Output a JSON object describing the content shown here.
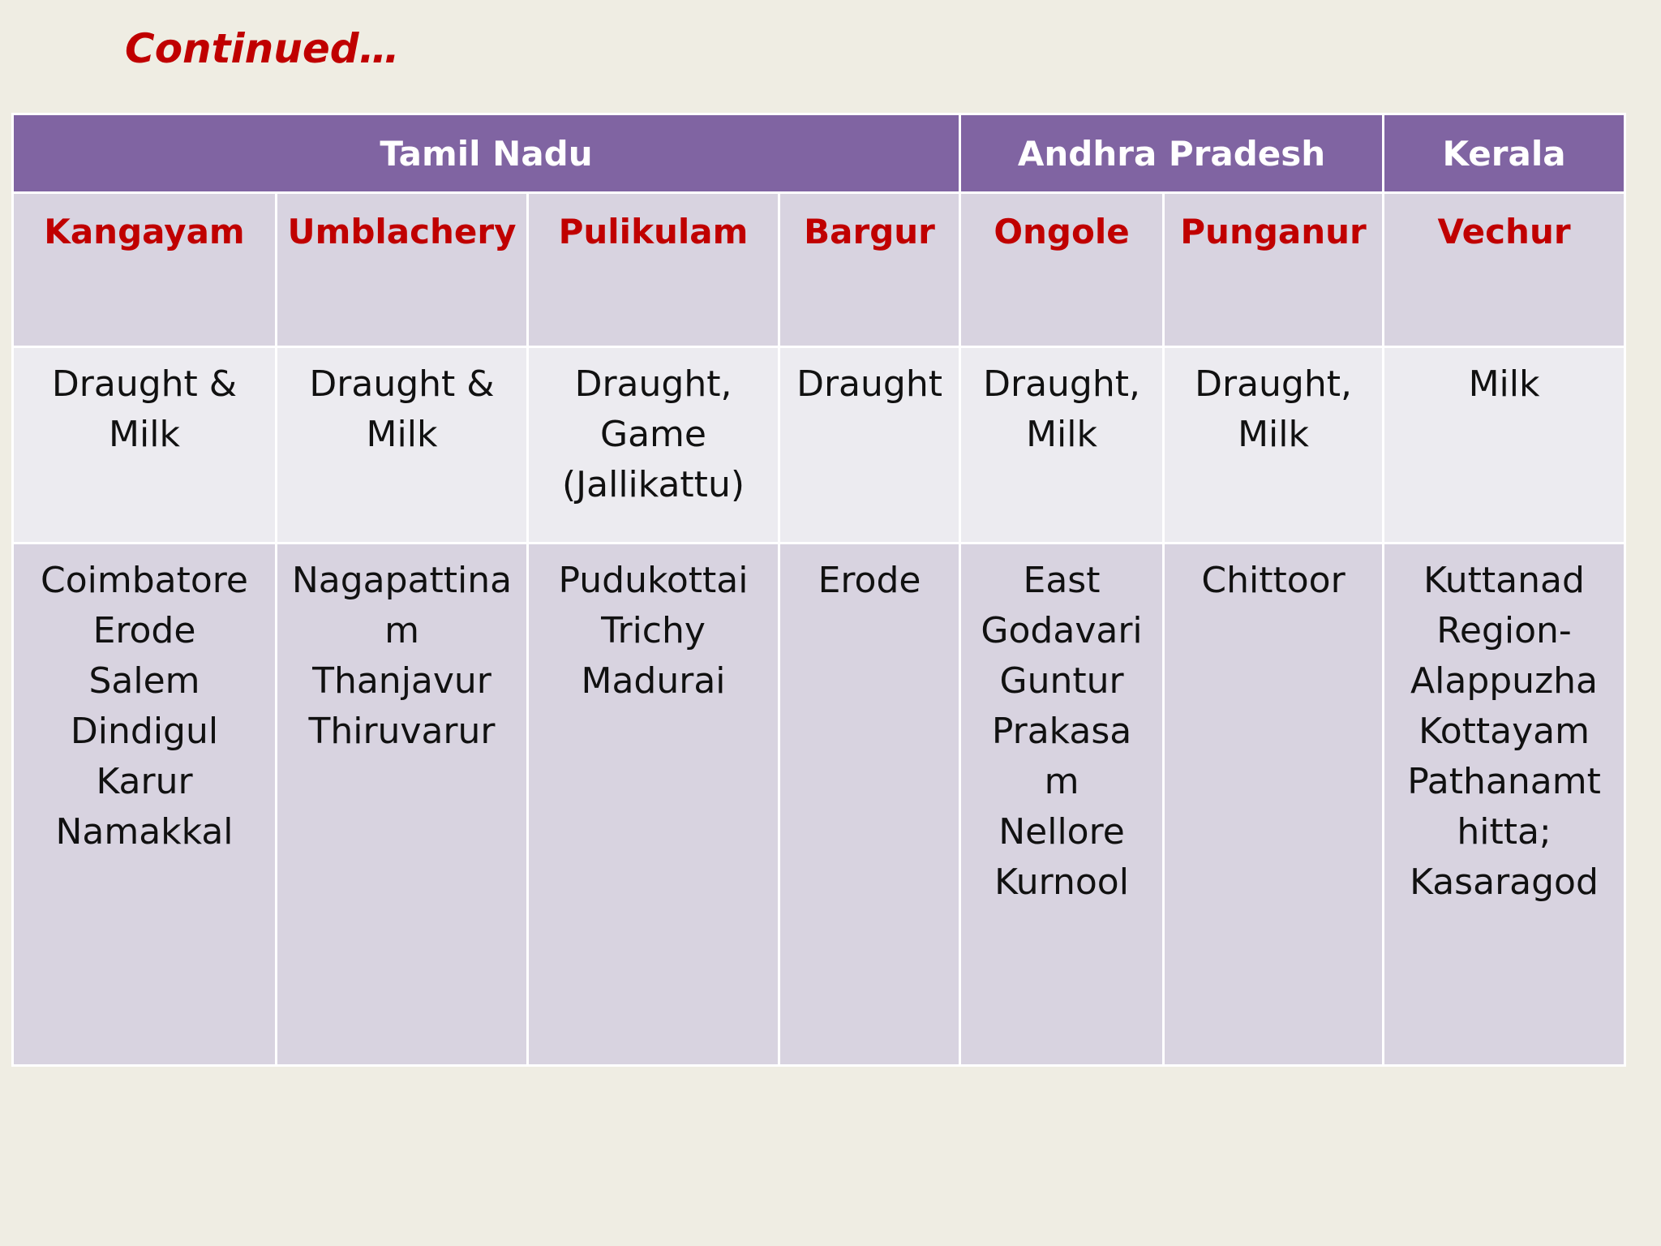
{
  "title": "Continued…",
  "states": [
    {
      "name": "Tamil Nadu"
    },
    {
      "name": "Andhra Pradesh"
    },
    {
      "name": "Kerala"
    }
  ],
  "breeds": [
    {
      "name": "Kangayam",
      "purpose": "Draught &\nMilk",
      "regions": "Coimbatore\nErode\nSalem\nDindigul\nKarur\nNamakkal"
    },
    {
      "name": "Umblachery",
      "purpose": "Draught &\nMilk",
      "regions": "Nagapattina\nm\nThanjavur\nThiruvarur"
    },
    {
      "name": "Pulikulam",
      "purpose": "Draught,\nGame\n(Jallikattu)",
      "regions": "Pudukottai\nTrichy\nMadurai"
    },
    {
      "name": "Bargur",
      "purpose": "Draught",
      "regions": "Erode"
    },
    {
      "name": "Ongole",
      "purpose": "Draught,\nMilk",
      "regions": " East\nGodavari\n Guntur\nPrakasa\nm\nNellore\nKurnool"
    },
    {
      "name": "Punganur",
      "purpose": "Draught,\nMilk",
      "regions": "Chittoor"
    },
    {
      "name": "Vechur",
      "purpose": "Milk",
      "regions": "Kuttanad\nRegion-\nAlappuzha\nKottayam\nPathanamt\nhitta;\nKasaragod"
    }
  ]
}
